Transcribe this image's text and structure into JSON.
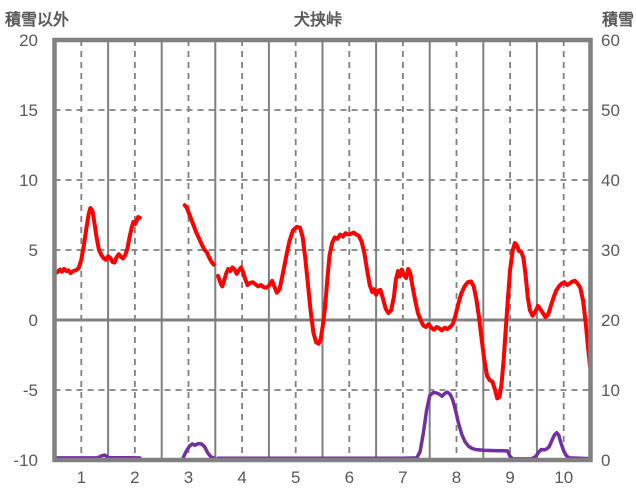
{
  "header": {
    "left_axis_label": "積雪以外",
    "title": "犬挟峠",
    "right_axis_label": "積雪"
  },
  "chart_data": {
    "type": "line",
    "title": "犬挟峠",
    "x_axis": {
      "labels": [
        "1",
        "2",
        "3",
        "4",
        "5",
        "6",
        "7",
        "8",
        "9",
        "10"
      ],
      "range": [
        0.5,
        10.5
      ],
      "solid_gridlines_at_boundaries": true,
      "dashed_gridlines_at_label_centers": true
    },
    "left_axis": {
      "label": "積雪以外",
      "ticks": [
        20,
        15,
        10,
        5,
        0,
        -5,
        -10
      ],
      "range": [
        -10,
        20
      ],
      "dashed_gridlines": [
        15,
        10,
        5,
        -5
      ],
      "solid_gridline": 0
    },
    "right_axis": {
      "label": "積雪",
      "ticks": [
        60,
        50,
        40,
        30,
        20,
        10,
        0
      ],
      "range": [
        0,
        60
      ],
      "dashed_gridlines": [
        10
      ]
    },
    "colors": {
      "non_snow_series": "#ff0000",
      "snow_series": "#7030a0",
      "grid": "#808080",
      "border": "#808080",
      "text": "#595959"
    },
    "legend": "none",
    "series": [
      {
        "name": "積雪以外",
        "axis": "left",
        "color": "#ff0000",
        "segments": [
          [
            [
              0.55,
              3.4
            ],
            [
              0.6,
              3.6
            ],
            [
              0.64,
              3.45
            ],
            [
              0.68,
              3.65
            ],
            [
              0.72,
              3.5
            ],
            [
              0.76,
              3.55
            ],
            [
              0.8,
              3.35
            ],
            [
              0.85,
              3.5
            ],
            [
              0.9,
              3.55
            ],
            [
              0.95,
              3.7
            ],
            [
              1,
              4.3
            ],
            [
              1.05,
              5.4
            ],
            [
              1.1,
              6.7
            ],
            [
              1.14,
              7.6
            ],
            [
              1.17,
              8
            ],
            [
              1.21,
              7.75
            ],
            [
              1.25,
              6.8
            ],
            [
              1.29,
              5.8
            ],
            [
              1.33,
              5
            ],
            [
              1.38,
              4.6
            ],
            [
              1.42,
              4.4
            ],
            [
              1.46,
              4.3
            ],
            [
              1.5,
              4.55
            ],
            [
              1.54,
              4.45
            ],
            [
              1.58,
              4.15
            ],
            [
              1.62,
              4.1
            ],
            [
              1.66,
              4.5
            ],
            [
              1.7,
              4.7
            ],
            [
              1.74,
              4.5
            ],
            [
              1.78,
              4.4
            ],
            [
              1.82,
              4.65
            ],
            [
              1.86,
              5.1
            ],
            [
              1.9,
              5.9
            ],
            [
              1.94,
              6.6
            ],
            [
              1.97,
              7
            ],
            [
              2,
              6.85
            ],
            [
              2.03,
              7.05
            ],
            [
              2.06,
              7.35
            ],
            [
              2.09,
              7.3
            ]
          ],
          [
            [
              2.93,
              8.2
            ],
            [
              2.97,
              8
            ],
            [
              3.02,
              7.5
            ],
            [
              3.08,
              6.9
            ],
            [
              3.14,
              6.3
            ],
            [
              3.2,
              5.8
            ],
            [
              3.26,
              5.3
            ],
            [
              3.3,
              5
            ],
            [
              3.34,
              4.85
            ],
            [
              3.38,
              4.5
            ],
            [
              3.43,
              4.15
            ],
            [
              3.47,
              3.95
            ]
          ],
          [
            [
              3.55,
              3.15
            ],
            [
              3.6,
              2.6
            ],
            [
              3.63,
              2.4
            ],
            [
              3.67,
              2.9
            ],
            [
              3.71,
              3.4
            ],
            [
              3.74,
              3.65
            ],
            [
              3.78,
              3.5
            ],
            [
              3.82,
              3.75
            ],
            [
              3.86,
              3.6
            ],
            [
              3.9,
              3.3
            ],
            [
              3.94,
              3.55
            ],
            [
              3.98,
              3.75
            ],
            [
              4.02,
              3.4
            ],
            [
              4.06,
              2.9
            ],
            [
              4.1,
              2.5
            ],
            [
              4.15,
              2.65
            ],
            [
              4.2,
              2.7
            ],
            [
              4.25,
              2.55
            ],
            [
              4.3,
              2.4
            ],
            [
              4.35,
              2.5
            ],
            [
              4.4,
              2.35
            ],
            [
              4.45,
              2.3
            ],
            [
              4.5,
              2.45
            ],
            [
              4.56,
              2.8
            ],
            [
              4.61,
              2.3
            ],
            [
              4.65,
              1.95
            ],
            [
              4.7,
              2.2
            ],
            [
              4.76,
              3.3
            ],
            [
              4.82,
              4.5
            ],
            [
              4.88,
              5.6
            ],
            [
              4.95,
              6.4
            ],
            [
              5.02,
              6.65
            ],
            [
              5.08,
              6.6
            ],
            [
              5.13,
              5.9
            ],
            [
              5.18,
              4.4
            ],
            [
              5.23,
              2.5
            ],
            [
              5.28,
              0.6
            ],
            [
              5.33,
              -0.9
            ],
            [
              5.38,
              -1.6
            ],
            [
              5.43,
              -1.7
            ],
            [
              5.47,
              -1.3
            ],
            [
              5.51,
              -0.3
            ],
            [
              5.55,
              1
            ],
            [
              5.59,
              2.9
            ],
            [
              5.63,
              4.6
            ],
            [
              5.68,
              5.5
            ],
            [
              5.73,
              5.9
            ],
            [
              5.78,
              5.8
            ],
            [
              5.83,
              6.1
            ],
            [
              5.88,
              5.95
            ],
            [
              5.93,
              6.2
            ],
            [
              5.98,
              6.1
            ],
            [
              6.03,
              6.15
            ],
            [
              6.08,
              6.25
            ],
            [
              6.13,
              6.1
            ],
            [
              6.18,
              6
            ],
            [
              6.23,
              5.6
            ],
            [
              6.28,
              4.8
            ],
            [
              6.33,
              3.6
            ],
            [
              6.38,
              2.5
            ],
            [
              6.43,
              2
            ],
            [
              6.46,
              2.2
            ],
            [
              6.5,
              1.8
            ],
            [
              6.54,
              2.1
            ],
            [
              6.58,
              2.15
            ],
            [
              6.63,
              1.5
            ],
            [
              6.68,
              0.8
            ],
            [
              6.73,
              0.5
            ],
            [
              6.78,
              0.7
            ],
            [
              6.83,
              1.6
            ],
            [
              6.87,
              2.9
            ],
            [
              6.91,
              3.5
            ],
            [
              6.94,
              3.1
            ],
            [
              6.98,
              3.6
            ],
            [
              7.02,
              3.2
            ],
            [
              7.06,
              3
            ],
            [
              7.1,
              3.65
            ],
            [
              7.14,
              3.3
            ],
            [
              7.18,
              2.4
            ],
            [
              7.23,
              1.4
            ],
            [
              7.28,
              0.5
            ],
            [
              7.33,
              0
            ],
            [
              7.38,
              -0.4
            ],
            [
              7.43,
              -0.5
            ],
            [
              7.48,
              -0.3
            ],
            [
              7.53,
              -0.55
            ],
            [
              7.58,
              -0.7
            ],
            [
              7.63,
              -0.5
            ],
            [
              7.68,
              -0.6
            ],
            [
              7.73,
              -0.75
            ],
            [
              7.78,
              -0.55
            ],
            [
              7.83,
              -0.65
            ],
            [
              7.88,
              -0.5
            ],
            [
              7.93,
              -0.3
            ],
            [
              7.98,
              0.3
            ],
            [
              8.03,
              1.1
            ],
            [
              8.09,
              1.9
            ],
            [
              8.15,
              2.4
            ],
            [
              8.21,
              2.7
            ],
            [
              8.27,
              2.75
            ],
            [
              8.32,
              2.4
            ],
            [
              8.37,
              1.5
            ],
            [
              8.42,
              0.2
            ],
            [
              8.47,
              -1.4
            ],
            [
              8.52,
              -2.9
            ],
            [
              8.57,
              -4
            ],
            [
              8.62,
              -4.3
            ],
            [
              8.67,
              -4.4
            ],
            [
              8.72,
              -5
            ],
            [
              8.76,
              -5.6
            ],
            [
              8.8,
              -5.5
            ],
            [
              8.84,
              -4.6
            ],
            [
              8.88,
              -2.8
            ],
            [
              8.92,
              -0.6
            ],
            [
              8.96,
              1.6
            ],
            [
              9,
              3.6
            ],
            [
              9.05,
              5
            ],
            [
              9.09,
              5.5
            ],
            [
              9.13,
              5.3
            ],
            [
              9.17,
              4.9
            ],
            [
              9.21,
              4.85
            ],
            [
              9.25,
              4.4
            ],
            [
              9.29,
              3.2
            ],
            [
              9.33,
              1.6
            ],
            [
              9.37,
              0.7
            ],
            [
              9.42,
              0.3
            ],
            [
              9.47,
              0.6
            ],
            [
              9.52,
              1
            ],
            [
              9.56,
              0.8
            ],
            [
              9.61,
              0.5
            ],
            [
              9.66,
              0.2
            ],
            [
              9.71,
              0.4
            ],
            [
              9.76,
              1
            ],
            [
              9.81,
              1.6
            ],
            [
              9.86,
              2.1
            ],
            [
              9.91,
              2.4
            ],
            [
              9.96,
              2.6
            ],
            [
              10.01,
              2.7
            ],
            [
              10.06,
              2.5
            ],
            [
              10.11,
              2.6
            ],
            [
              10.16,
              2.75
            ],
            [
              10.21,
              2.8
            ],
            [
              10.26,
              2.6
            ],
            [
              10.31,
              2.3
            ],
            [
              10.36,
              1.4
            ],
            [
              10.41,
              -0.2
            ],
            [
              10.45,
              -1.8
            ],
            [
              10.49,
              -3.3
            ]
          ]
        ]
      },
      {
        "name": "積雪",
        "axis": "right",
        "color": "#7030a0",
        "segments": [
          [
            [
              0.55,
              0.3
            ],
            [
              1.3,
              0.3
            ],
            [
              1.38,
              0.6
            ],
            [
              1.44,
              0.7
            ],
            [
              1.5,
              0.35
            ],
            [
              2.09,
              0.3
            ]
          ],
          [
            [
              2.9,
              0.3
            ],
            [
              2.96,
              1.3
            ],
            [
              3.02,
              2
            ],
            [
              3.07,
              2.3
            ],
            [
              3.12,
              2.1
            ],
            [
              3.18,
              2.35
            ],
            [
              3.24,
              2.3
            ],
            [
              3.3,
              1.9
            ],
            [
              3.36,
              1
            ],
            [
              3.42,
              0.45
            ],
            [
              3.47,
              0.3
            ]
          ],
          [
            [
              3.55,
              0.25
            ],
            [
              5,
              0.25
            ],
            [
              7,
              0.25
            ],
            [
              7.26,
              0.3
            ],
            [
              7.32,
              1.2
            ],
            [
              7.38,
              3.8
            ],
            [
              7.44,
              7
            ],
            [
              7.5,
              9.2
            ],
            [
              7.56,
              9.6
            ],
            [
              7.62,
              9.6
            ],
            [
              7.68,
              9.4
            ],
            [
              7.73,
              9.1
            ],
            [
              7.78,
              9.5
            ],
            [
              7.83,
              9.7
            ],
            [
              7.88,
              9.4
            ],
            [
              7.93,
              8.6
            ],
            [
              7.98,
              7.2
            ],
            [
              8.04,
              5.2
            ],
            [
              8.1,
              3.6
            ],
            [
              8.16,
              2.6
            ],
            [
              8.22,
              2
            ],
            [
              8.28,
              1.7
            ],
            [
              8.35,
              1.5
            ],
            [
              8.5,
              1.4
            ],
            [
              8.7,
              1.35
            ],
            [
              8.95,
              1.3
            ],
            [
              9,
              0.5
            ],
            [
              9.05,
              0.15
            ],
            [
              9.4,
              0.15
            ],
            [
              9.48,
              0.5
            ],
            [
              9.53,
              1.1
            ],
            [
              9.58,
              1.5
            ],
            [
              9.63,
              1.45
            ],
            [
              9.68,
              1.55
            ],
            [
              9.73,
              1.9
            ],
            [
              9.78,
              2.8
            ],
            [
              9.83,
              3.6
            ],
            [
              9.87,
              3.9
            ],
            [
              9.91,
              3.5
            ],
            [
              9.95,
              2.4
            ],
            [
              10,
              1.3
            ],
            [
              10.05,
              0.6
            ],
            [
              10.1,
              0.3
            ],
            [
              10.49,
              0.2
            ]
          ]
        ]
      }
    ]
  }
}
